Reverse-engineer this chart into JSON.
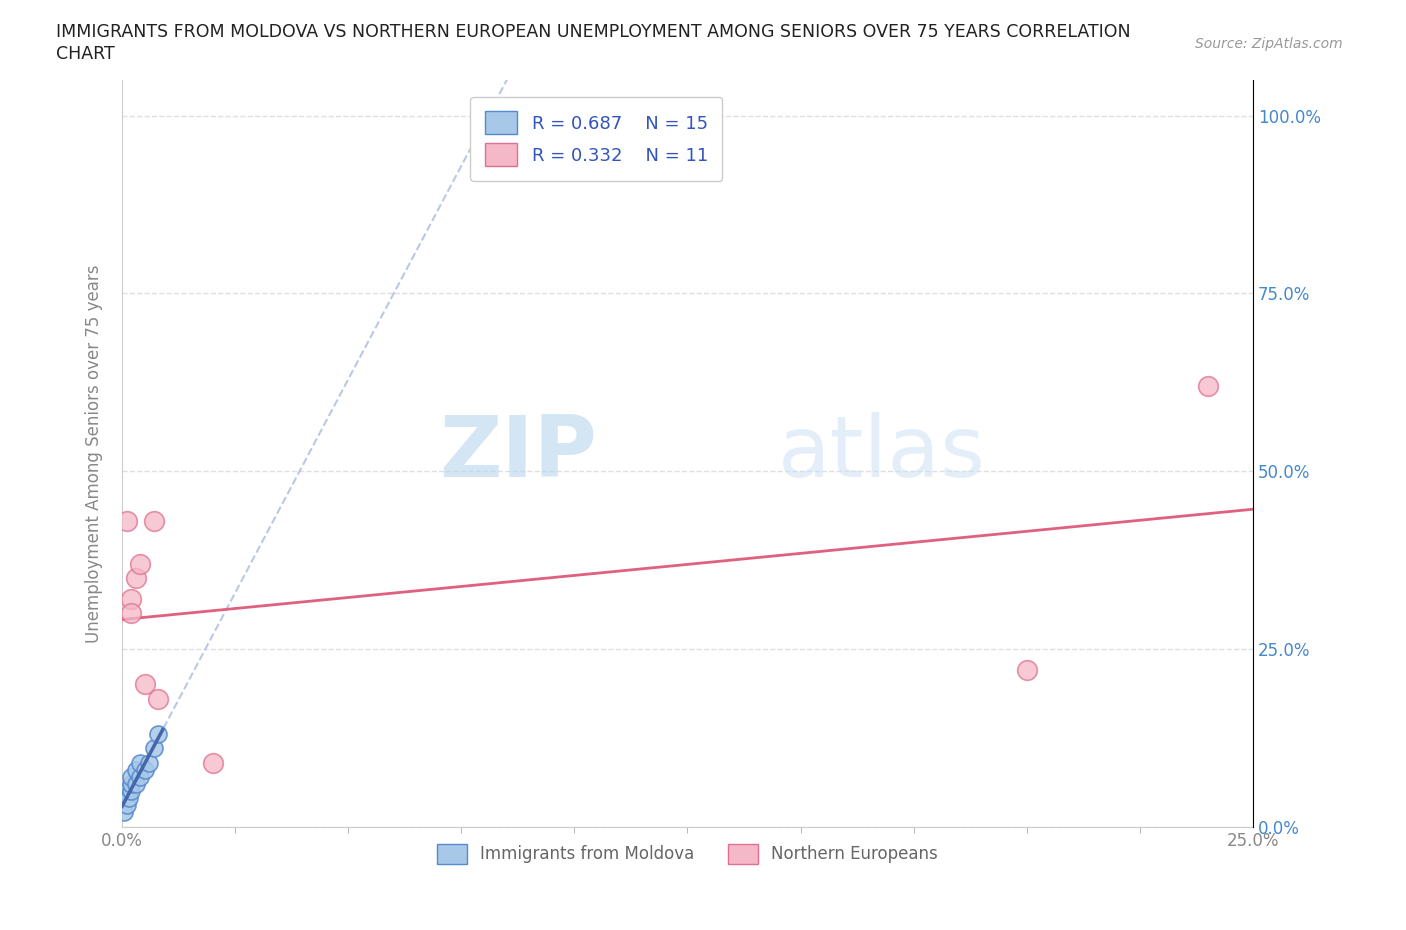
{
  "title_line1": "IMMIGRANTS FROM MOLDOVA VS NORTHERN EUROPEAN UNEMPLOYMENT AMONG SENIORS OVER 75 YEARS CORRELATION",
  "title_line2": "CHART",
  "source": "Source: ZipAtlas.com",
  "ylabel": "Unemployment Among Seniors over 75 years",
  "xlim": [
    0.0,
    0.25
  ],
  "ylim": [
    0.0,
    1.05
  ],
  "yticks": [
    0.0,
    0.25,
    0.5,
    0.75,
    1.0
  ],
  "ytick_labels": [
    "0.0%",
    "25.0%",
    "50.0%",
    "75.0%",
    "100.0%"
  ],
  "xtick_labels_shown": [
    "0.0%",
    "25.0%"
  ],
  "xticks_shown": [
    0.0,
    0.25
  ],
  "blue_scatter_x": [
    0.0005,
    0.001,
    0.001,
    0.0015,
    0.002,
    0.002,
    0.002,
    0.003,
    0.003,
    0.004,
    0.004,
    0.005,
    0.006,
    0.007,
    0.008
  ],
  "blue_scatter_y": [
    0.02,
    0.03,
    0.05,
    0.04,
    0.05,
    0.06,
    0.07,
    0.06,
    0.08,
    0.07,
    0.09,
    0.08,
    0.09,
    0.11,
    0.13
  ],
  "pink_scatter_x": [
    0.001,
    0.002,
    0.002,
    0.003,
    0.004,
    0.005,
    0.007,
    0.008,
    0.02,
    0.2,
    0.24
  ],
  "pink_scatter_y": [
    0.43,
    0.32,
    0.3,
    0.35,
    0.37,
    0.2,
    0.43,
    0.18,
    0.09,
    0.22,
    0.62
  ],
  "blue_R": 0.687,
  "blue_N": 15,
  "pink_R": 0.332,
  "pink_N": 11,
  "blue_scatter_color": "#a8c8e8",
  "blue_scatter_edge": "#5588cc",
  "blue_line_color": "#4466aa",
  "blue_dashed_color": "#aabbdd",
  "pink_scatter_color": "#f4b8c8",
  "pink_scatter_edge": "#e07090",
  "pink_line_color": "#e06080",
  "legend_text_color": "#3355bb",
  "background_color": "#ffffff",
  "grid_color": "#e0e0e0",
  "title_color": "#222222",
  "right_ytick_color": "#4488cc",
  "watermark_color": "#d0e8f5",
  "ylabel_color": "#888888",
  "xtick_color": "#888888"
}
